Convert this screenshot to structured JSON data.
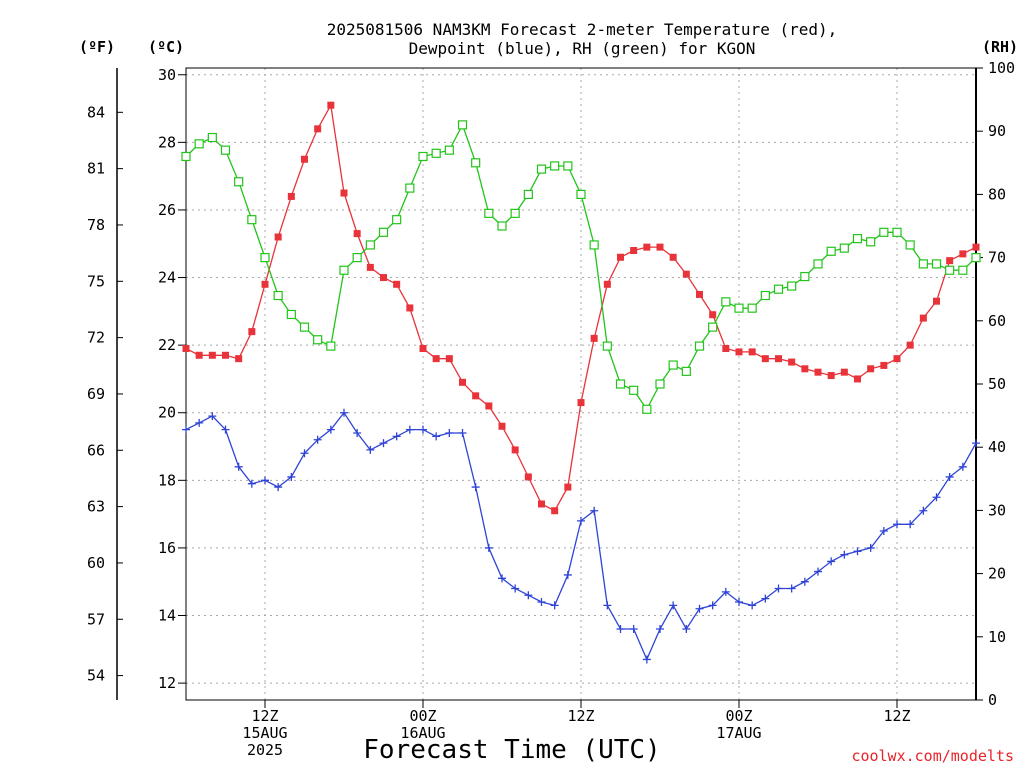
{
  "chart_data": {
    "type": "line",
    "title_line1": "2025081506 NAM3KM Forecast 2-meter Temperature (red),",
    "title_line2": "Dewpoint (blue), RH (green) for KGON",
    "xlabel": "Forecast Time (UTC)",
    "credit": "coolwx.com/modelts",
    "unit_f": "(ºF)",
    "unit_c": "(ºC)",
    "unit_rh": "(RH)",
    "grid": true,
    "x_start_hours": 6,
    "x_range_hours": [
      6,
      66
    ],
    "ylim_c": [
      11.5,
      30.2
    ],
    "ylim_rh": [
      0,
      100
    ],
    "yticks_c": [
      "12",
      "14",
      "16",
      "18",
      "20",
      "22",
      "24",
      "26",
      "28",
      "30"
    ],
    "yticks_f": [
      "54",
      "57",
      "60",
      "63",
      "66",
      "69",
      "72",
      "75",
      "78",
      "81",
      "84"
    ],
    "yticks_rh": [
      "0",
      "10",
      "20",
      "30",
      "40",
      "50",
      "60",
      "70",
      "80",
      "90",
      "100"
    ],
    "xticks": [
      {
        "hour": 12,
        "lines": [
          "12Z",
          "15AUG",
          "2025"
        ]
      },
      {
        "hour": 24,
        "lines": [
          "00Z",
          "16AUG"
        ]
      },
      {
        "hour": 36,
        "lines": [
          "12Z"
        ]
      },
      {
        "hour": 48,
        "lines": [
          "00Z",
          "17AUG"
        ]
      },
      {
        "hour": 60,
        "lines": [
          "12Z"
        ]
      }
    ],
    "series": [
      {
        "name": "2-meter Temperature",
        "units": "C",
        "color": "#e8333a",
        "marker": "filled-square",
        "values": [
          21.9,
          21.7,
          21.7,
          21.7,
          21.6,
          22.4,
          23.8,
          25.2,
          26.4,
          27.5,
          28.4,
          29.1,
          26.5,
          25.3,
          24.3,
          24.0,
          23.8,
          23.1,
          21.9,
          21.6,
          21.6,
          20.9,
          20.5,
          20.2,
          19.6,
          18.9,
          18.1,
          17.3,
          17.1,
          17.8,
          20.3,
          22.2,
          23.8,
          24.6,
          24.8,
          24.9,
          24.9,
          24.6,
          24.1,
          23.5,
          22.9,
          21.9,
          21.8,
          21.8,
          21.6,
          21.6,
          21.5,
          21.3,
          21.2,
          21.1,
          21.2,
          21.0,
          21.3,
          21.4,
          21.6,
          22.0,
          22.8,
          23.3,
          24.5,
          24.7,
          24.9
        ]
      },
      {
        "name": "Dewpoint",
        "units": "C",
        "color": "#2f44d6",
        "marker": "plus",
        "values": [
          19.5,
          19.7,
          19.9,
          19.5,
          18.4,
          17.9,
          18.0,
          17.8,
          18.1,
          18.8,
          19.2,
          19.5,
          20.0,
          19.4,
          18.9,
          19.1,
          19.3,
          19.5,
          19.5,
          19.3,
          19.4,
          19.4,
          17.8,
          16.0,
          15.1,
          14.8,
          14.6,
          14.4,
          14.3,
          15.2,
          16.8,
          17.1,
          14.3,
          13.6,
          13.6,
          12.7,
          13.6,
          14.3,
          13.6,
          14.2,
          14.3,
          14.7,
          14.4,
          14.3,
          14.5,
          14.8,
          14.8,
          15.0,
          15.3,
          15.6,
          15.8,
          15.9,
          16.0,
          16.5,
          16.7,
          16.7,
          17.1,
          17.5,
          18.1,
          18.4,
          19.1
        ]
      },
      {
        "name": "RH",
        "units": "%",
        "color": "#22c41a",
        "marker": "open-square",
        "values": [
          86,
          88,
          89,
          87,
          82,
          76,
          70,
          64,
          61,
          59,
          57,
          56,
          68,
          70,
          72,
          74,
          76,
          81,
          86,
          86.5,
          87,
          91,
          85,
          77,
          75,
          77,
          80,
          84,
          84.5,
          84.5,
          80,
          72,
          56,
          50,
          49,
          46,
          50,
          53,
          52,
          56,
          59,
          63,
          62,
          62,
          64,
          65,
          65.5,
          67,
          69,
          71,
          71.5,
          73,
          72.5,
          74,
          74,
          72,
          69,
          69,
          68,
          68,
          70
        ]
      }
    ]
  }
}
